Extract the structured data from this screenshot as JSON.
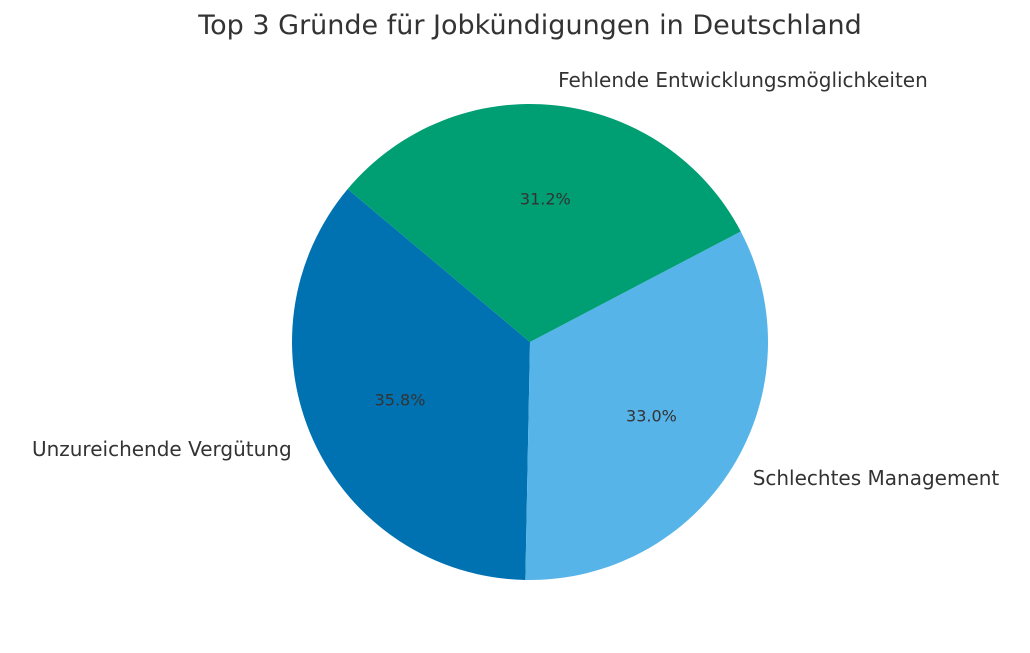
{
  "chart_data": {
    "type": "pie",
    "title": "Top 3 Gründe für Jobkündigungen in Deutschland",
    "start_angle_deg": 140,
    "direction": "counterclockwise",
    "slices": [
      {
        "label": "Unzureichende Vergütung",
        "value": 35.8,
        "pct_label": "35.8%",
        "color": "#0072B2"
      },
      {
        "label": "Schlechtes Management",
        "value": 33.0,
        "pct_label": "33.0%",
        "color": "#56B4E9"
      },
      {
        "label": "Fehlende Entwicklungsmöglichkeiten",
        "value": 31.2,
        "pct_label": "31.2%",
        "color": "#009E73"
      }
    ]
  }
}
